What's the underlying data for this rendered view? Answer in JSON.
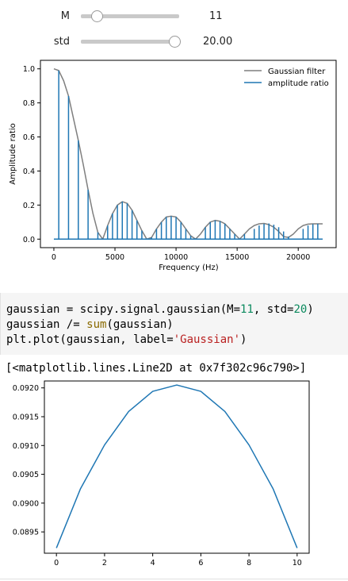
{
  "widgets": {
    "m": {
      "label": "M",
      "value": "11",
      "fraction": 0.1
    },
    "std": {
      "label": "std",
      "value": "20.00",
      "fraction": 1.0
    }
  },
  "code_cell": {
    "lines": [
      [
        {
          "t": "gaussian = scipy.signal.gaussian(M="
        },
        {
          "t": "11",
          "c": "num"
        },
        {
          "t": ", std="
        },
        {
          "t": "20",
          "c": "num"
        },
        {
          "t": ")"
        }
      ],
      [
        {
          "t": "gaussian /= "
        },
        {
          "t": "sum",
          "c": "bi"
        },
        {
          "t": "(gaussian)"
        }
      ],
      [
        {
          "t": "plt.plot(gaussian, label="
        },
        {
          "t": "'Gaussian'",
          "c": "str"
        },
        {
          "t": ")"
        }
      ]
    ]
  },
  "output_text": "[<matplotlib.lines.Line2D at 0x7f302c96c790>]",
  "chart_data": [
    {
      "type": "line",
      "xlabel": "Frequency (Hz)",
      "ylabel": "Amplitude ratio",
      "xlim": [
        -1100,
        23100
      ],
      "ylim": [
        -0.05,
        1.05
      ],
      "xticks": [
        0,
        5000,
        10000,
        15000,
        20000
      ],
      "yticks": [
        0.0,
        0.2,
        0.4,
        0.6,
        0.8,
        1.0
      ],
      "ytick_labels": [
        "0.0",
        "0.2",
        "0.4",
        "0.6",
        "0.8",
        "1.0"
      ],
      "legend_position": "top-right",
      "series": [
        {
          "name": "Gaussian filter",
          "color": "#7f7f7f",
          "x": [
            0,
            400,
            800,
            1200,
            1600,
            2000,
            2400,
            2800,
            3200,
            3600,
            4000,
            4400,
            4800,
            5200,
            5600,
            6000,
            6400,
            6800,
            7200,
            7600,
            8000,
            8400,
            8800,
            9200,
            9600,
            10000,
            10400,
            10800,
            11200,
            11600,
            12000,
            12400,
            12800,
            13200,
            13600,
            14000,
            14400,
            14800,
            15200,
            15600,
            16000,
            16400,
            16800,
            17200,
            17600,
            18000,
            18400,
            18800,
            19200,
            19600,
            20000,
            20400,
            20800,
            21200,
            21600,
            22000
          ],
          "values": [
            1.0,
            0.99,
            0.93,
            0.84,
            0.71,
            0.58,
            0.44,
            0.29,
            0.15,
            0.04,
            0.0,
            0.08,
            0.15,
            0.2,
            0.22,
            0.21,
            0.17,
            0.11,
            0.05,
            0.0,
            0.01,
            0.06,
            0.1,
            0.13,
            0.135,
            0.13,
            0.1,
            0.06,
            0.02,
            0.0,
            0.03,
            0.07,
            0.1,
            0.11,
            0.105,
            0.09,
            0.06,
            0.03,
            0.0,
            0.03,
            0.06,
            0.08,
            0.09,
            0.092,
            0.085,
            0.07,
            0.045,
            0.015,
            0.01,
            0.03,
            0.06,
            0.08,
            0.088,
            0.09,
            0.09,
            0.09
          ]
        },
        {
          "name": "amplitude ratio",
          "color": "#1f77b4",
          "kind": "stem",
          "x": [
            400,
            1200,
            2000,
            2800,
            3600,
            4400,
            4800,
            5200,
            5600,
            6000,
            6400,
            6800,
            7200,
            8000,
            8400,
            8800,
            9200,
            9600,
            10000,
            10400,
            10800,
            11200,
            11600,
            12400,
            12800,
            13200,
            13600,
            14000,
            14400,
            14800,
            15200,
            15600,
            16400,
            16800,
            17200,
            17600,
            18000,
            18400,
            18800,
            19200,
            20400,
            20800,
            21200,
            21600
          ],
          "values": [
            0.99,
            0.84,
            0.58,
            0.29,
            0.04,
            0.08,
            0.15,
            0.2,
            0.22,
            0.21,
            0.17,
            0.11,
            0.05,
            0.01,
            0.06,
            0.1,
            0.13,
            0.135,
            0.13,
            0.1,
            0.06,
            0.02,
            0.0,
            0.07,
            0.1,
            0.11,
            0.105,
            0.09,
            0.06,
            0.03,
            0.0,
            0.03,
            0.06,
            0.08,
            0.09,
            0.092,
            0.085,
            0.07,
            0.045,
            0.015,
            0.06,
            0.08,
            0.088,
            0.09
          ]
        }
      ]
    },
    {
      "type": "line",
      "xlabel": "",
      "ylabel": "",
      "xlim": [
        -0.5,
        10.5
      ],
      "ylim": [
        0.08913,
        0.09212
      ],
      "xticks": [
        0,
        2,
        4,
        6,
        8,
        10
      ],
      "yticks": [
        0.0895,
        0.09,
        0.0905,
        0.091,
        0.0915,
        0.092
      ],
      "ytick_labels": [
        "0.0895",
        "0.0900",
        "0.0905",
        "0.0910",
        "0.0915",
        "0.0920"
      ],
      "series": [
        {
          "name": "Gaussian",
          "color": "#1f77b4",
          "x": [
            0,
            1,
            2,
            3,
            4,
            5,
            6,
            7,
            8,
            9,
            10
          ],
          "values": [
            0.08922,
            0.09025,
            0.09101,
            0.09159,
            0.09194,
            0.09205,
            0.09194,
            0.09159,
            0.09101,
            0.09025,
            0.08922
          ]
        }
      ]
    }
  ]
}
